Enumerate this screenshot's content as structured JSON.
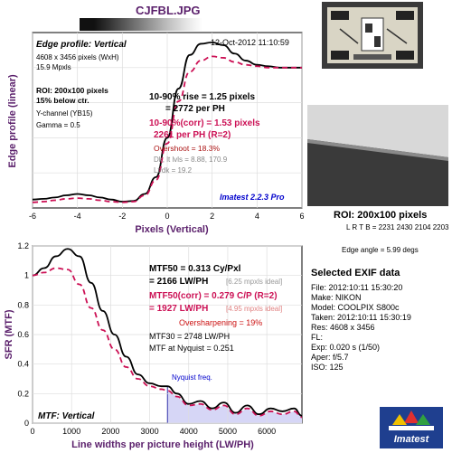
{
  "header": {
    "filename": "CJFBL.JPG"
  },
  "thumbnail": {
    "icon": "test-chart-thumbnail"
  },
  "roi_panel": {
    "title": "ROI: 200x100 pixels",
    "coords": "L R  T B = 2231 2430  2104 2203",
    "edge_angle": "Edge angle = 5.99 degs"
  },
  "exif": {
    "title": "Selected EXIF data",
    "rows": [
      "File:  2012:10:11  15:30:20",
      "Make:  NIKON",
      "Model:  COOLPIX S800c",
      "Taken:  2012:10:11  15:30:19",
      "Res:  4608 x 3456",
      "FL:",
      "Exp:   0.020 s  (1/50)",
      "Aper:   f/5.7",
      "ISO:   125"
    ]
  },
  "logo": {
    "text": "Imatest",
    "icon": "imatest-logo"
  },
  "chart_data": [
    {
      "type": "line",
      "title": "Edge profile: Vertical",
      "date": "12-Oct-2012 11:10:59",
      "xlabel": "Pixels (Vertical)",
      "ylabel": "Edge profile (linear)",
      "xlim": [
        -6,
        6
      ],
      "ylim": [
        0,
        1.25
      ],
      "xticks": [
        -6,
        -4,
        -2,
        0,
        2,
        4,
        6
      ],
      "grid": true,
      "info_left": [
        "4608 x 3456 pixels (WxH)",
        "15.9 Mpxls",
        "ROI: 200x100 pixels",
        "15% below ctr.",
        "Y-channel (YB15)",
        "Gamma = 0.5"
      ],
      "annotations": {
        "rise_line1": "10-90% rise = 1.25 pixels",
        "rise_line2": "= 2772 per PH",
        "corr_line1": "10-90%(corr) = 1.53 pixels",
        "corr_line2": "2261 per PH  (R=2)",
        "overshoot": "Overshoot = 18.3%",
        "lvls": "Dk, lt lvls = 8.88, 170.9",
        "ltdk": "Lt/dk = 19.2",
        "version": "Imatest 2.2.3 Pro"
      },
      "series": [
        {
          "color": "#000000",
          "x": [
            -6,
            -5.5,
            -5,
            -4.5,
            -4,
            -3.5,
            -3,
            -2.5,
            -2,
            -1.5,
            -1,
            -0.5,
            0,
            0.5,
            1,
            1.5,
            2,
            2.5,
            3,
            3.5,
            4,
            4.5,
            5,
            5.5,
            6
          ],
          "y": [
            0.06,
            0.065,
            0.075,
            0.09,
            0.1,
            0.09,
            0.075,
            0.06,
            0.045,
            0.05,
            0.1,
            0.22,
            0.5,
            0.85,
            1.09,
            1.17,
            1.18,
            1.16,
            1.1,
            1.05,
            1.02,
            1.01,
            1.0,
            1.0,
            1.0
          ]
        },
        {
          "color": "#cc1155",
          "x": [
            -6,
            -5.5,
            -5,
            -4.5,
            -4,
            -3.5,
            -3,
            -2.5,
            -2,
            -1.5,
            -1,
            -0.5,
            0,
            0.5,
            1,
            1.5,
            2,
            2.5,
            3,
            3.5,
            4,
            4.5,
            5,
            5.5,
            6
          ],
          "y": [
            0.04,
            0.045,
            0.055,
            0.065,
            0.07,
            0.065,
            0.055,
            0.045,
            0.04,
            0.045,
            0.09,
            0.2,
            0.46,
            0.76,
            0.97,
            1.05,
            1.08,
            1.07,
            1.04,
            1.02,
            1.01,
            1.0,
            1.0,
            1.0,
            1.0
          ]
        }
      ]
    },
    {
      "type": "line",
      "title": "MTF: Vertical",
      "xlabel": "Line widths per picture height (LW/PH)",
      "ylabel": "SFR (MTF)",
      "xlim": [
        0,
        6900
      ],
      "ylim": [
        0,
        1.2
      ],
      "xticks": [
        0,
        1000,
        2000,
        3000,
        4000,
        5000,
        6000
      ],
      "yticks": [
        0,
        0.2,
        0.4,
        0.6,
        0.8,
        1,
        1.2
      ],
      "grid": true,
      "nyquist": {
        "x": 3456,
        "label": "Nyquist freq."
      },
      "annotations": {
        "mtf50": "MTF50 = 0.313 Cy/Pxl",
        "mtf50_lw": "= 2166 LW/PH",
        "mtf50_ideal": "[6.25 mpxls ideal]",
        "corr": "MTF50(corr) = 0.279 C/P  (R=2)",
        "corr_lw": "= 1927 LW/PH",
        "corr_ideal": "[4.95 mpxls ideal]",
        "oversharp": "Oversharpening = 19%",
        "mtf30": "MTF30 = 2748 LW/PH",
        "nyq_val": "MTF at Nyquist = 0.251"
      },
      "series": [
        {
          "color": "#000000",
          "x": [
            0,
            300,
            600,
            900,
            1200,
            1500,
            1800,
            2100,
            2400,
            2700,
            3000,
            3300,
            3456,
            3700,
            4000,
            4300,
            4600,
            4900,
            5200,
            5500,
            5800,
            6100,
            6400,
            6700,
            6900
          ],
          "y": [
            1.0,
            1.05,
            1.13,
            1.18,
            1.13,
            0.95,
            0.76,
            0.6,
            0.45,
            0.33,
            0.27,
            0.25,
            0.25,
            0.2,
            0.13,
            0.15,
            0.1,
            0.14,
            0.07,
            0.12,
            0.06,
            0.1,
            0.08,
            0.1,
            0.05
          ]
        },
        {
          "color": "#cc1155",
          "x": [
            0,
            300,
            600,
            900,
            1200,
            1500,
            1800,
            2100,
            2400,
            2700,
            3000,
            3300,
            3456,
            3700,
            4000,
            4300,
            4600,
            4900,
            5200,
            5500,
            5800,
            6100,
            6400,
            6700,
            6900
          ],
          "y": [
            1.0,
            1.02,
            1.05,
            1.04,
            0.94,
            0.78,
            0.63,
            0.5,
            0.38,
            0.3,
            0.25,
            0.23,
            0.22,
            0.18,
            0.12,
            0.13,
            0.09,
            0.12,
            0.06,
            0.1,
            0.05,
            0.08,
            0.06,
            0.08,
            0.04
          ]
        }
      ]
    }
  ]
}
